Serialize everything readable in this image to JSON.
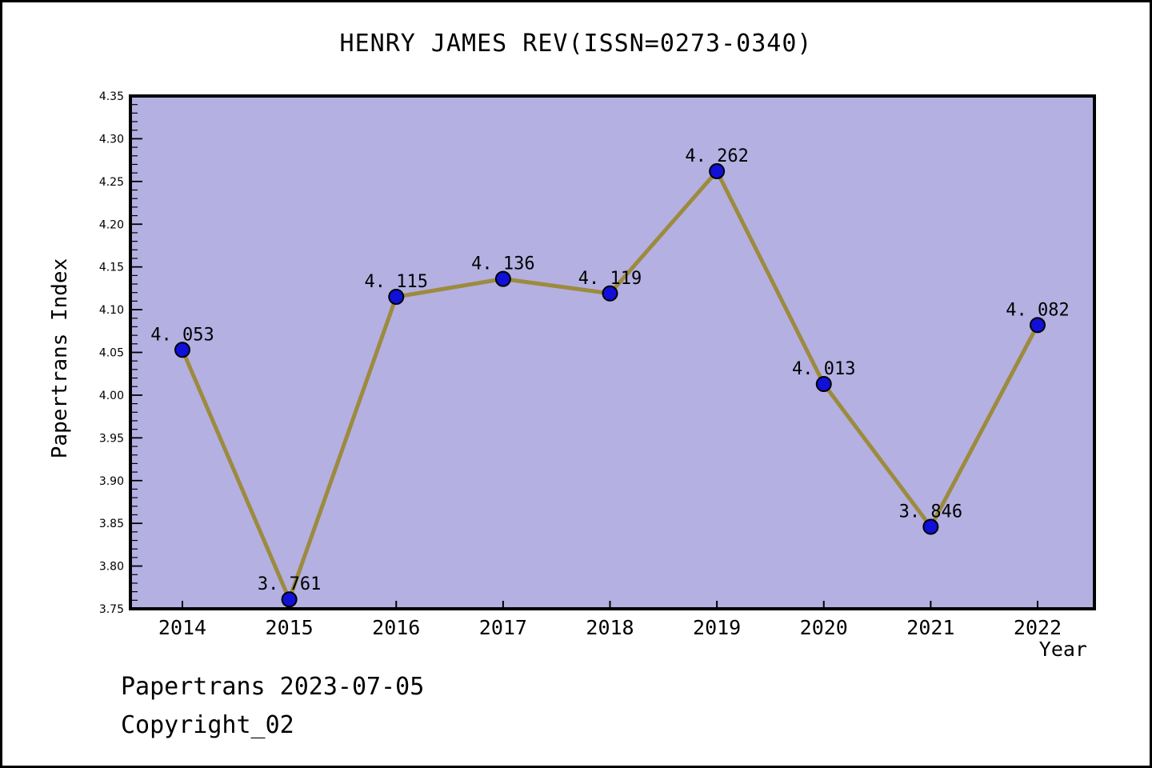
{
  "footer": {
    "line1": "Papertrans 2023-07-05",
    "line2": "Copyright_02"
  },
  "colors": {
    "figure_background": "#ffffff",
    "figure_border": "#000000",
    "plot_background": "#b4b0e2",
    "plot_border": "#000000",
    "line": "#9c8b3e",
    "marker_fill": "#1010d8",
    "marker_edge": "#000000",
    "text": "#000000"
  },
  "chart_data": {
    "type": "line",
    "title": "HENRY JAMES REV(ISSN=0273-0340)",
    "xlabel": "Year",
    "ylabel": "Papertrans Index",
    "x": [
      2014,
      2015,
      2016,
      2017,
      2018,
      2019,
      2020,
      2021,
      2022
    ],
    "values": [
      4.053,
      3.761,
      4.115,
      4.136,
      4.119,
      4.262,
      4.013,
      3.846,
      4.082
    ],
    "point_labels": [
      "4. 053",
      "3. 761",
      "4. 115",
      "4. 136",
      "4. 119",
      "4. 262",
      "4. 013",
      "3. 846",
      "4. 082"
    ],
    "ylim": [
      3.75,
      4.35
    ],
    "y_major_step": 0.05,
    "y_minor_step": 0.01,
    "y_tick_decimals": 2,
    "grid": false,
    "legend": null,
    "marker": "circle"
  }
}
